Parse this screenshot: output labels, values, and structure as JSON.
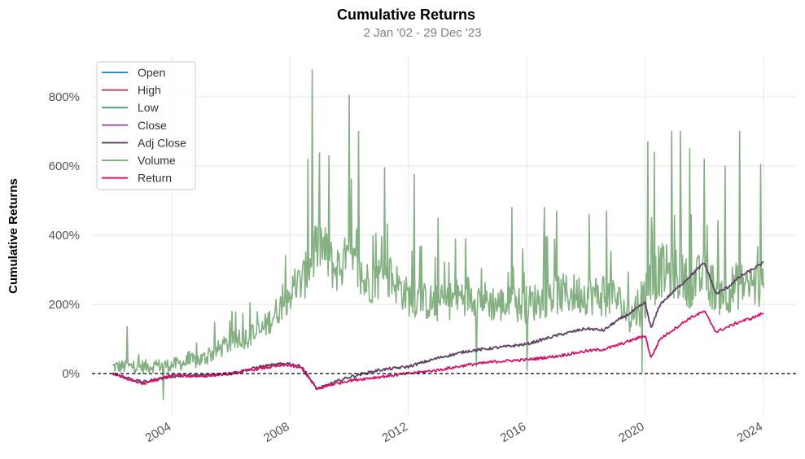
{
  "chart_data": {
    "type": "line",
    "title": "Cumulative Returns",
    "subtitle": "2 Jan '02 - 29 Dec '23",
    "ylabel": "Cumulative Returns",
    "xlabel": "",
    "xlim": [
      2001.3,
      2025.1
    ],
    "ylim": [
      -120,
      920
    ],
    "y_ticks": [
      0,
      200,
      400,
      600,
      800
    ],
    "y_tick_labels": [
      "0%",
      "200%",
      "400%",
      "600%",
      "800%"
    ],
    "x_ticks": [
      2004,
      2008,
      2012,
      2016,
      2020,
      2024
    ],
    "x_tick_labels": [
      "2004",
      "2008",
      "2012",
      "2016",
      "2020",
      "2024"
    ],
    "grid": true,
    "legend_position": "top-left",
    "baseline": 0,
    "series": [
      {
        "name": "Open",
        "color": "#348dc1",
        "style": "hidden",
        "x": [
          2002.0,
          2003.0,
          2004.0,
          2005.0,
          2006.0,
          2007.0,
          2007.9,
          2008.4,
          2008.9,
          2009.5,
          2010.0,
          2011.0,
          2012.0,
          2013.0,
          2014.0,
          2015.0,
          2016.0,
          2017.0,
          2018.0,
          2018.6,
          2019.0,
          2019.5,
          2020.0,
          2020.2,
          2020.5,
          2021.0,
          2021.5,
          2022.0,
          2022.4,
          2022.8,
          2023.2,
          2023.6,
          2024.0
        ],
        "values": [
          0,
          -25,
          -8,
          -5,
          0,
          20,
          30,
          20,
          -45,
          -25,
          -10,
          10,
          20,
          45,
          65,
          75,
          85,
          110,
          130,
          125,
          150,
          175,
          205,
          130,
          200,
          240,
          280,
          320,
          230,
          250,
          280,
          300,
          320
        ]
      },
      {
        "name": "High",
        "color": "#af4b64",
        "style": "hidden",
        "x": [
          2002.0,
          2003.0,
          2004.0,
          2005.0,
          2006.0,
          2007.0,
          2007.9,
          2008.4,
          2008.9,
          2009.5,
          2010.0,
          2011.0,
          2012.0,
          2013.0,
          2014.0,
          2015.0,
          2016.0,
          2017.0,
          2018.0,
          2018.6,
          2019.0,
          2019.5,
          2020.0,
          2020.2,
          2020.5,
          2021.0,
          2021.5,
          2022.0,
          2022.4,
          2022.8,
          2023.2,
          2023.6,
          2024.0
        ],
        "values": [
          0,
          -25,
          -8,
          -5,
          0,
          20,
          30,
          20,
          -45,
          -25,
          -10,
          10,
          20,
          45,
          65,
          75,
          85,
          110,
          130,
          125,
          150,
          175,
          205,
          130,
          200,
          240,
          280,
          320,
          230,
          250,
          280,
          300,
          320
        ]
      },
      {
        "name": "Low",
        "color": "#4fa487",
        "style": "hidden",
        "x": [
          2002.0,
          2003.0,
          2004.0,
          2005.0,
          2006.0,
          2007.0,
          2007.9,
          2008.4,
          2008.9,
          2009.5,
          2010.0,
          2011.0,
          2012.0,
          2013.0,
          2014.0,
          2015.0,
          2016.0,
          2017.0,
          2018.0,
          2018.6,
          2019.0,
          2019.5,
          2020.0,
          2020.2,
          2020.5,
          2021.0,
          2021.5,
          2022.0,
          2022.4,
          2022.8,
          2023.2,
          2023.6,
          2024.0
        ],
        "values": [
          0,
          -25,
          -8,
          -5,
          0,
          20,
          30,
          20,
          -45,
          -25,
          -10,
          10,
          20,
          45,
          65,
          75,
          85,
          110,
          130,
          125,
          150,
          175,
          205,
          130,
          200,
          240,
          280,
          320,
          230,
          250,
          280,
          300,
          320
        ]
      },
      {
        "name": "Close",
        "color": "#9b59b6",
        "style": "hidden",
        "x": [
          2002.0,
          2003.0,
          2004.0,
          2005.0,
          2006.0,
          2007.0,
          2007.9,
          2008.4,
          2008.9,
          2009.5,
          2010.0,
          2011.0,
          2012.0,
          2013.0,
          2014.0,
          2015.0,
          2016.0,
          2017.0,
          2018.0,
          2018.6,
          2019.0,
          2019.5,
          2020.0,
          2020.2,
          2020.5,
          2021.0,
          2021.5,
          2022.0,
          2022.4,
          2022.8,
          2023.2,
          2023.6,
          2024.0
        ],
        "values": [
          0,
          -25,
          -8,
          -5,
          0,
          20,
          30,
          20,
          -45,
          -25,
          -10,
          10,
          20,
          45,
          65,
          75,
          85,
          110,
          130,
          125,
          150,
          175,
          205,
          130,
          200,
          240,
          280,
          320,
          230,
          250,
          280,
          300,
          320
        ]
      },
      {
        "name": "Adj Close",
        "color": "#613f66",
        "style": "line",
        "jitter": 4,
        "x": [
          2002.0,
          2003.0,
          2004.0,
          2005.0,
          2006.0,
          2007.0,
          2007.9,
          2008.4,
          2008.9,
          2009.5,
          2010.0,
          2011.0,
          2012.0,
          2013.0,
          2014.0,
          2015.0,
          2016.0,
          2017.0,
          2018.0,
          2018.6,
          2019.0,
          2019.5,
          2020.0,
          2020.2,
          2020.5,
          2021.0,
          2021.5,
          2022.0,
          2022.4,
          2022.8,
          2023.2,
          2023.6,
          2024.0
        ],
        "values": [
          0,
          -25,
          -8,
          -5,
          0,
          20,
          30,
          20,
          -45,
          -25,
          -10,
          10,
          20,
          45,
          65,
          75,
          85,
          110,
          130,
          125,
          150,
          175,
          205,
          130,
          200,
          240,
          280,
          320,
          230,
          250,
          280,
          300,
          320
        ]
      },
      {
        "name": "Volume",
        "color": "#84b082",
        "style": "spiky",
        "x": [
          2002.0,
          2003.0,
          2004.0,
          2005.0,
          2006.0,
          2007.0,
          2008.0,
          2008.5,
          2009.0,
          2009.5,
          2010.0,
          2010.5,
          2011.0,
          2011.5,
          2012.0,
          2013.0,
          2014.0,
          2015.0,
          2016.0,
          2017.0,
          2018.0,
          2019.0,
          2019.5,
          2020.0,
          2020.5,
          2021.0,
          2021.5,
          2022.0,
          2022.5,
          2023.0,
          2023.5,
          2024.0
        ],
        "values": [
          20,
          20,
          25,
          40,
          90,
          120,
          230,
          280,
          380,
          300,
          330,
          260,
          280,
          270,
          220,
          200,
          230,
          200,
          200,
          230,
          230,
          220,
          160,
          230,
          300,
          290,
          260,
          280,
          230,
          250,
          260,
          250
        ],
        "spread": [
          40,
          40,
          40,
          50,
          60,
          70,
          100,
          130,
          170,
          140,
          160,
          130,
          140,
          130,
          110,
          110,
          120,
          110,
          110,
          120,
          120,
          120,
          100,
          160,
          160,
          150,
          140,
          150,
          130,
          140,
          140,
          140
        ],
        "extremes": [
          [
            2002.5,
            135
          ],
          [
            2003.7,
            -75
          ],
          [
            2008.75,
            878
          ],
          [
            2008.6,
            620
          ],
          [
            2010.0,
            805
          ],
          [
            2010.3,
            700
          ],
          [
            2009.3,
            630
          ],
          [
            2011.2,
            595
          ],
          [
            2012.2,
            575
          ],
          [
            2013.0,
            450
          ],
          [
            2015.5,
            480
          ],
          [
            2016.6,
            480
          ],
          [
            2017.0,
            470
          ],
          [
            2018.1,
            460
          ],
          [
            2018.7,
            470
          ],
          [
            2020.1,
            670
          ],
          [
            2020.3,
            640
          ],
          [
            2020.9,
            700
          ],
          [
            2021.2,
            700
          ],
          [
            2021.5,
            650
          ],
          [
            2022.0,
            620
          ],
          [
            2022.7,
            600
          ],
          [
            2023.2,
            700
          ],
          [
            2023.9,
            605
          ],
          [
            2019.9,
            5
          ],
          [
            2016.0,
            10
          ],
          [
            2014.3,
            20
          ]
        ]
      },
      {
        "name": "Return",
        "color": "#d4146e",
        "style": "line",
        "jitter": 4,
        "x": [
          2002.0,
          2003.0,
          2004.0,
          2005.0,
          2006.0,
          2007.0,
          2007.9,
          2008.4,
          2008.9,
          2009.5,
          2010.0,
          2011.0,
          2012.0,
          2013.0,
          2014.0,
          2015.0,
          2016.0,
          2017.0,
          2018.0,
          2018.6,
          2019.0,
          2019.5,
          2020.0,
          2020.2,
          2020.5,
          2021.0,
          2021.5,
          2022.0,
          2022.4,
          2022.8,
          2023.2,
          2023.6,
          2024.0
        ],
        "values": [
          0,
          -30,
          -5,
          -8,
          0,
          15,
          25,
          15,
          -45,
          -30,
          -20,
          -10,
          0,
          10,
          25,
          35,
          40,
          50,
          65,
          70,
          80,
          95,
          110,
          45,
          100,
          130,
          160,
          180,
          120,
          135,
          150,
          160,
          175
        ]
      }
    ]
  },
  "legend": {
    "items": [
      {
        "label": "Open",
        "color": "#348dc1"
      },
      {
        "label": "High",
        "color": "#af4b64"
      },
      {
        "label": "Low",
        "color": "#4fa487"
      },
      {
        "label": "Close",
        "color": "#9b59b6"
      },
      {
        "label": "Adj Close",
        "color": "#613f66"
      },
      {
        "label": "Volume",
        "color": "#84b082"
      },
      {
        "label": "Return",
        "color": "#d4146e"
      }
    ]
  }
}
